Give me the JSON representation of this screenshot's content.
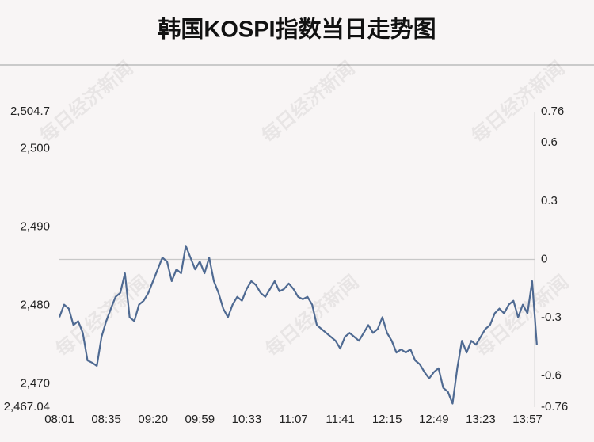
{
  "chart_data": {
    "type": "line",
    "title": "韩国KOSPI指数当日走势图",
    "watermark": "每日经济新闻",
    "categories": [
      "08:01",
      null,
      null,
      null,
      null,
      null,
      null,
      null,
      null,
      null,
      "08:35",
      null,
      null,
      null,
      null,
      null,
      null,
      null,
      null,
      null,
      "09:20",
      null,
      null,
      null,
      null,
      null,
      null,
      null,
      null,
      null,
      "09:59",
      null,
      null,
      null,
      null,
      null,
      null,
      null,
      null,
      null,
      "10:33",
      null,
      null,
      null,
      null,
      null,
      null,
      null,
      null,
      null,
      "11:07",
      null,
      null,
      null,
      null,
      null,
      null,
      null,
      null,
      null,
      "11:41",
      null,
      null,
      null,
      null,
      null,
      null,
      null,
      null,
      null,
      "12:15",
      null,
      null,
      null,
      null,
      null,
      null,
      null,
      null,
      null,
      "12:49",
      null,
      null,
      null,
      null,
      null,
      null,
      null,
      null,
      null,
      "13:23",
      null,
      null,
      null,
      null,
      null,
      null,
      null,
      null,
      null,
      "13:57",
      null,
      null
    ],
    "series": [
      {
        "name": "KOSPI",
        "color": "#4f6a92",
        "values": [
          2478.5,
          2480.1,
          2479.6,
          2477.5,
          2478.0,
          2476.5,
          2473.0,
          2472.7,
          2472.3,
          2476.0,
          2478.0,
          2479.6,
          2481.1,
          2481.6,
          2484.1,
          2478.5,
          2478.0,
          2480.1,
          2480.6,
          2481.6,
          2483.1,
          2484.6,
          2486.1,
          2485.6,
          2483.1,
          2484.6,
          2484.1,
          2487.6,
          2486.1,
          2484.6,
          2485.6,
          2484.1,
          2486.1,
          2483.1,
          2481.6,
          2479.6,
          2478.5,
          2480.1,
          2481.1,
          2480.6,
          2482.1,
          2483.1,
          2482.6,
          2481.6,
          2481.1,
          2482.1,
          2483.1,
          2481.8,
          2482.1,
          2482.8,
          2482.1,
          2481.1,
          2480.8,
          2481.1,
          2480.1,
          2477.5,
          2477.0,
          2476.5,
          2476.0,
          2475.5,
          2474.5,
          2476.0,
          2476.5,
          2476.0,
          2475.5,
          2476.5,
          2477.5,
          2476.5,
          2477.0,
          2478.5,
          2476.5,
          2475.5,
          2474.0,
          2474.4,
          2474.0,
          2474.4,
          2473.0,
          2472.5,
          2471.5,
          2470.7,
          2471.5,
          2472.0,
          2469.5,
          2469.0,
          2467.5,
          2472.0,
          2475.5,
          2474.0,
          2475.5,
          2475.0,
          2476.0,
          2477.0,
          2477.5,
          2479.0,
          2479.6,
          2479.0,
          2480.1,
          2480.6,
          2478.5,
          2480.1,
          2479.0,
          2483.1,
          2475.0
        ]
      }
    ],
    "ylim": [
      2467.04,
      2504.7
    ],
    "yticks": [
      {
        "value": 2467.04,
        "label": "2,467.04"
      },
      {
        "value": 2470,
        "label": "2,470"
      },
      {
        "value": 2480,
        "label": "2,480"
      },
      {
        "value": 2490,
        "label": "2,490"
      },
      {
        "value": 2500,
        "label": "2,500"
      },
      {
        "value": 2504.7,
        "label": "2,504.7"
      }
    ],
    "y2lim": [
      -0.76,
      0.76
    ],
    "y2ticks": [
      -0.76,
      -0.6,
      -0.3,
      0,
      0.3,
      0.6,
      0.76
    ],
    "zero_line": true
  }
}
